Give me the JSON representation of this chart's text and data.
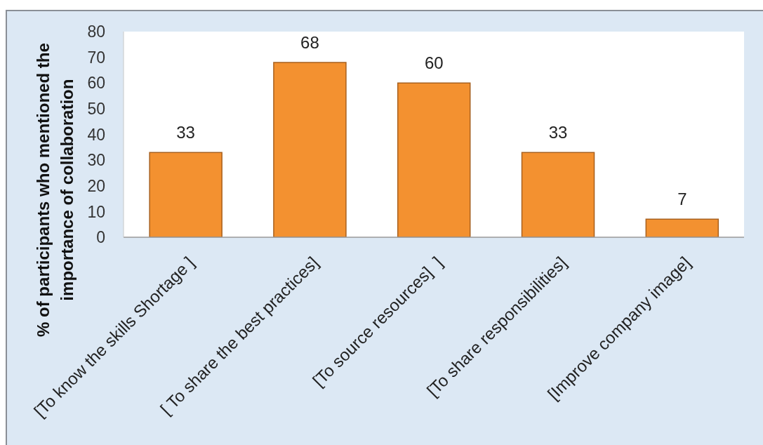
{
  "chart_data": {
    "type": "bar",
    "ylabel": "% of participants who mentioned the importance of collaboration",
    "categories": [
      "[To know the skills Shortage ]",
      "[ To share the best practices]",
      "[To source resources]  ]",
      "[To share responsibilities]",
      "[Improve company image]"
    ],
    "values": [
      33,
      68,
      60,
      33,
      7
    ],
    "color": "#f39130",
    "ylim": [
      0,
      80
    ],
    "yticks": [
      0,
      10,
      20,
      30,
      40,
      50,
      60,
      70,
      80
    ],
    "data_labels": true
  }
}
